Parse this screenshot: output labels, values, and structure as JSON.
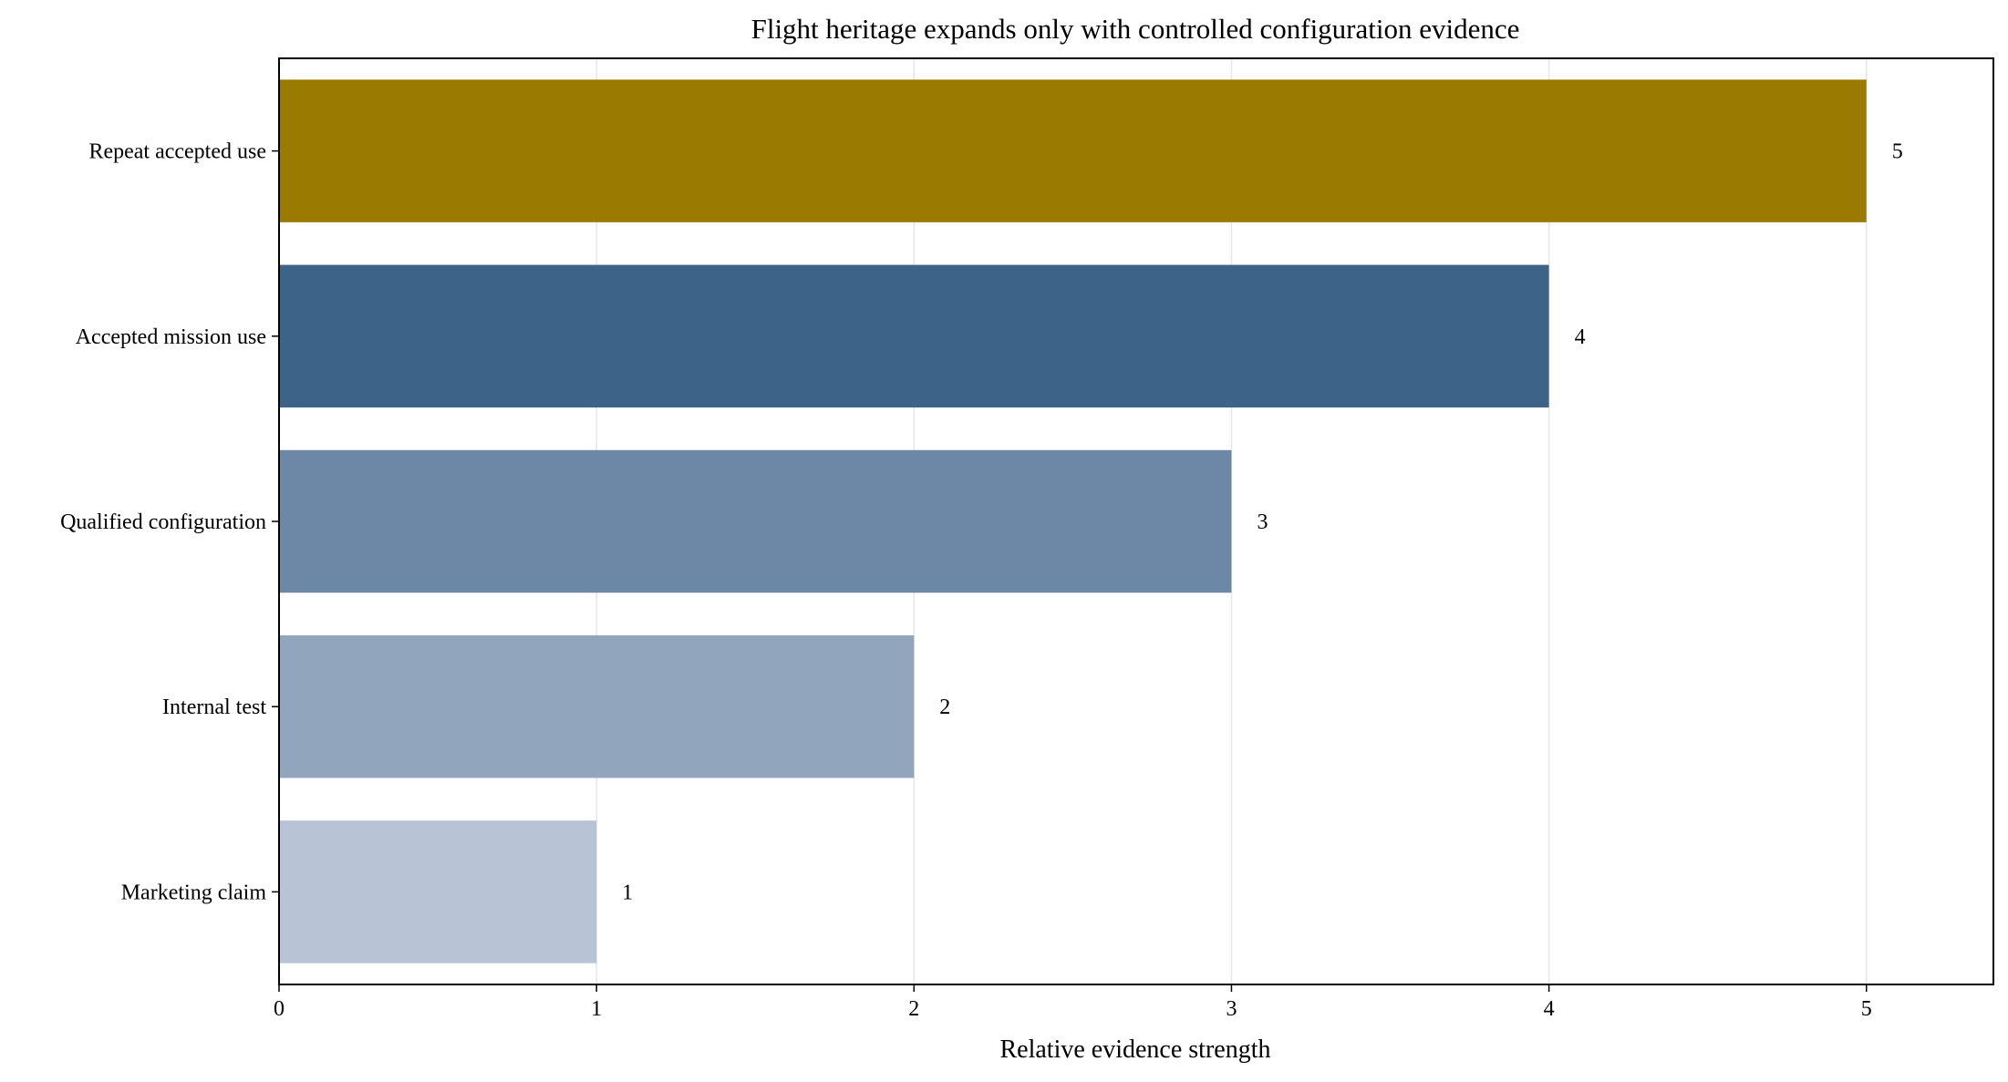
{
  "chart_data": {
    "type": "bar",
    "orientation": "horizontal",
    "title": "Flight heritage expands only with controlled configuration evidence",
    "xlabel": "Relative evidence strength",
    "ylabel": "",
    "categories": [
      "Marketing claim",
      "Internal test",
      "Qualified configuration",
      "Accepted mission use",
      "Repeat accepted use"
    ],
    "values": [
      1,
      2,
      3,
      4,
      5
    ],
    "data_labels": [
      "1",
      "2",
      "3",
      "4",
      "5"
    ],
    "colors": [
      "#b8c4d5",
      "#91a6bd",
      "#6d88a6",
      "#3d6389",
      "#9a7a00"
    ],
    "xlim": [
      0,
      5.4
    ],
    "x_ticks": [
      0,
      1,
      2,
      3,
      4,
      5
    ],
    "x_tick_labels": [
      "0",
      "1",
      "2",
      "3",
      "4",
      "5"
    ],
    "grid": "vertical",
    "legend": "none"
  }
}
